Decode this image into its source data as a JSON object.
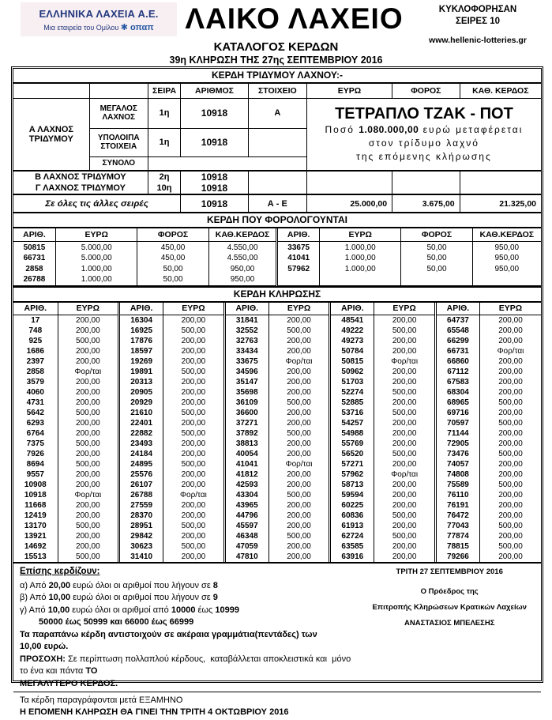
{
  "header": {
    "company": "ΕΛΛΗΝΙΚΑ ΛΑΧΕΙΑ Α.Ε.",
    "company_sub": "Μια εταιρεία του Ομίλου",
    "opap": "οπαπ",
    "title": "ΛΑΙΚΟ ΛΑΧΕΙΟ",
    "circulated_line1": "ΚΥΚΛΟΦΟΡΗΣΑΝ",
    "circulated_line2": "ΣΕΙΡΕΣ 10",
    "website": "www.hellenic-lotteries.gr",
    "catalog_title": "ΚΑΤΑΛΟΓΟΣ ΚΕΡΔΩΝ",
    "draw_subtitle": "39η ΚΛΗΡΩΣΗ ΤΗΣ 27ης ΣΕΠΤΕΜΒΡΙΟΥ 2016"
  },
  "colors": {
    "navy": "#23387e",
    "opap_blue": "#2456a4",
    "logo_bg": "#f7eff2"
  },
  "tridymos": {
    "banner": "ΚΕΡΔΗ ΤΡΙΔΥΜΟΥ ΛΑΧΝΟΥ:-",
    "headers": {
      "seira": "ΣΕΙΡΑ",
      "arithmos": "ΑΡΙΘΜΟΣ",
      "stoixeio": "ΣΤΟΙΧΕΙΟ",
      "euro": "ΕΥΡΩ",
      "foros": "ΦΟΡΟΣ",
      "kath": "ΚΑΘ. ΚΕΡΔΟΣ"
    },
    "row_a_label": "Α ΛΑΧΝΟΣ ΤΡΙΔΥΜΟΥ",
    "megalos_label": "ΜΕΓΑΛΟΣ ΛΑΧΝΟΣ",
    "megalos": {
      "seira": "1η",
      "arithmos": "10918",
      "stoixeio": "Α"
    },
    "ypoloipa_label": "ΥΠΟΛΟΙΠΑ ΣΤΟΙΧΕΙΑ",
    "ypoloipa": {
      "seira": "1η",
      "arithmos": "10918"
    },
    "synolo_label": "ΣΥΝΟΛΟ",
    "jackpot": {
      "title": "ΤΕΤΡΑΠΛΟ ΤΖΑΚ - ΠΟΤ",
      "line1_prefix": "Ποσό ",
      "amount": "1.080.000,00",
      "line1_suffix": " ευρώ μεταφέρεται",
      "line2": "στον τρίδυμο λαχνό",
      "line3": "της επόμενης κλήρωσης"
    },
    "row_b_label": "Β ΛΑΧΝΟΣ ΤΡΙΔΥΜΟΥ",
    "row_b": {
      "seira": "2η",
      "arithmos": "10918"
    },
    "row_c_label": "Γ ΛΑΧΝΟΣ ΤΡΙΔΥΜΟΥ",
    "row_c": {
      "seira": "10η",
      "arithmos": "10918"
    },
    "all_series": {
      "label": "Σε όλες τις άλλες σειρές",
      "arithmos": "10918",
      "stoixeio": "Α - Ε",
      "euro": "25.000,00",
      "foros": "3.675,00",
      "kath": "21.325,00"
    }
  },
  "taxed": {
    "banner": "ΚΕΡΔΗ ΠΟΥ ΦΟΡΟΛΟΓΟΥΝΤΑΙ",
    "headers": [
      "ΑΡΙΘ.",
      "ΕΥΡΩ",
      "ΦΟΡΟΣ",
      "ΚΑΘ.ΚΕΡΔΟΣ",
      "ΑΡΙΘ.",
      "ΕΥΡΩ",
      "ΦΟΡΟΣ",
      "ΚΑΘ.ΚΕΡΔΟΣ"
    ],
    "rows": [
      [
        "50815",
        "5.000,00",
        "450,00",
        "4.550,00",
        "33675",
        "1.000,00",
        "50,00",
        "950,00"
      ],
      [
        "66731",
        "5.000,00",
        "450,00",
        "4.550,00",
        "41041",
        "1.000,00",
        "50,00",
        "950,00"
      ],
      [
        "2858",
        "1.000,00",
        "50,00",
        "950,00",
        "57962",
        "1.000,00",
        "50,00",
        "950,00"
      ],
      [
        "26788",
        "1.000,00",
        "50,00",
        "950,00",
        "",
        "",
        "",
        ""
      ]
    ]
  },
  "draw": {
    "banner": "ΚΕΡΔΗ ΚΛΗΡΩΣΗΣ",
    "headers": [
      "ΑΡΙΘ.",
      "ΕΥΡΩ",
      "ΑΡΙΘ.",
      "ΕΥΡΩ",
      "ΑΡΙΘ.",
      "ΕΥΡΩ",
      "ΑΡΙΘ.",
      "ΕΥΡΩ",
      "ΑΡΙΘ.",
      "ΕΥΡΩ"
    ],
    "rows": [
      [
        "17",
        "200,00",
        "16304",
        "200,00",
        "31841",
        "200,00",
        "48541",
        "200,00",
        "64737",
        "200,00"
      ],
      [
        "748",
        "200,00",
        "16925",
        "500,00",
        "32552",
        "500,00",
        "49222",
        "500,00",
        "65548",
        "200,00"
      ],
      [
        "925",
        "500,00",
        "17876",
        "200,00",
        "32763",
        "200,00",
        "49273",
        "200,00",
        "66299",
        "200,00"
      ],
      [
        "1686",
        "200,00",
        "18597",
        "200,00",
        "33434",
        "200,00",
        "50784",
        "200,00",
        "66731",
        "Φορ/ται"
      ],
      [
        "2397",
        "200,00",
        "19269",
        "200,00",
        "33675",
        "Φορ/ται",
        "50815",
        "Φορ/ται",
        "66860",
        "200,00"
      ],
      [
        "2858",
        "Φορ/ται",
        "19891",
        "500,00",
        "34596",
        "200,00",
        "50962",
        "200,00",
        "67112",
        "200,00"
      ],
      [
        "3579",
        "200,00",
        "20313",
        "200,00",
        "35147",
        "200,00",
        "51703",
        "200,00",
        "67583",
        "200,00"
      ],
      [
        "4060",
        "200,00",
        "20905",
        "200,00",
        "35698",
        "200,00",
        "52274",
        "500,00",
        "68304",
        "200,00"
      ],
      [
        "4731",
        "200,00",
        "20929",
        "200,00",
        "36109",
        "500,00",
        "52885",
        "200,00",
        "68965",
        "500,00"
      ],
      [
        "5642",
        "500,00",
        "21610",
        "500,00",
        "36600",
        "200,00",
        "53716",
        "500,00",
        "69716",
        "200,00"
      ],
      [
        "6293",
        "200,00",
        "22401",
        "200,00",
        "37271",
        "200,00",
        "54257",
        "200,00",
        "70597",
        "500,00"
      ],
      [
        "6764",
        "200,00",
        "22882",
        "500,00",
        "37892",
        "500,00",
        "54988",
        "200,00",
        "71144",
        "200,00"
      ],
      [
        "7375",
        "500,00",
        "23493",
        "200,00",
        "38813",
        "200,00",
        "55769",
        "200,00",
        "72905",
        "200,00"
      ],
      [
        "7926",
        "200,00",
        "24184",
        "200,00",
        "40054",
        "200,00",
        "56520",
        "500,00",
        "73476",
        "500,00"
      ],
      [
        "8694",
        "500,00",
        "24895",
        "500,00",
        "41041",
        "Φορ/ται",
        "57271",
        "200,00",
        "74057",
        "200,00"
      ],
      [
        "9557",
        "200,00",
        "25576",
        "200,00",
        "41812",
        "200,00",
        "57962",
        "Φορ/ται",
        "74808",
        "200,00"
      ],
      [
        "10908",
        "200,00",
        "26107",
        "200,00",
        "42593",
        "200,00",
        "58713",
        "200,00",
        "75589",
        "500,00"
      ],
      [
        "10918",
        "Φορ/ται",
        "26788",
        "Φορ/ται",
        "43304",
        "500,00",
        "59594",
        "200,00",
        "76110",
        "200,00"
      ],
      [
        "11668",
        "200,00",
        "27559",
        "200,00",
        "43965",
        "200,00",
        "60225",
        "200,00",
        "76191",
        "200,00"
      ],
      [
        "12419",
        "200,00",
        "28370",
        "200,00",
        "44796",
        "200,00",
        "60836",
        "500,00",
        "76472",
        "200,00"
      ],
      [
        "13170",
        "500,00",
        "28951",
        "500,00",
        "45597",
        "200,00",
        "61913",
        "200,00",
        "77043",
        "500,00"
      ],
      [
        "13921",
        "200,00",
        "29842",
        "200,00",
        "46348",
        "500,00",
        "62724",
        "500,00",
        "77874",
        "200,00"
      ],
      [
        "14692",
        "200,00",
        "30623",
        "500,00",
        "47059",
        "200,00",
        "63585",
        "200,00",
        "78815",
        "500,00"
      ],
      [
        "15513",
        "500,00",
        "31410",
        "200,00",
        "47810",
        "200,00",
        "63916",
        "200,00",
        "79266",
        "200,00"
      ]
    ]
  },
  "footer": {
    "also_win_title": "Επίσης κερδίζουν:",
    "line_a": [
      {
        "t": "α) Από "
      },
      {
        "t": "20,00",
        "b": true
      },
      {
        "t": " ευρώ όλοι οι αριθμοί που λήγουν σε "
      },
      {
        "t": "8",
        "b": true
      }
    ],
    "line_b": [
      {
        "t": "β) Από "
      },
      {
        "t": "10,00",
        "b": true
      },
      {
        "t": " ευρώ όλοι οι αριθμοί που λήγουν σε "
      },
      {
        "t": "9",
        "b": true
      }
    ],
    "line_c": [
      {
        "t": "γ) Από "
      },
      {
        "t": "10,00",
        "b": true
      },
      {
        "t": " ευρώ όλοι οι αριθμοί από "
      },
      {
        "t": "10000",
        "b": true
      },
      {
        "t": " έως "
      },
      {
        "t": "10999",
        "b": true
      }
    ],
    "line_c2": [
      {
        "t": "50000",
        "b": true
      },
      {
        "t": " έως "
      },
      {
        "t": "50999",
        "b": true
      },
      {
        "t": " και "
      },
      {
        "t": "66000",
        "b": true
      },
      {
        "t": " έως "
      },
      {
        "t": "66999",
        "b": true
      }
    ],
    "note_1": [
      {
        "t": "Τα παραπάνω κέρδη αντιστοιχούν σε ακέραια γραμμάτια(πεντάδες) των",
        "b": true
      }
    ],
    "note_2": [
      {
        "t": "10,00 ευρώ.",
        "b": true
      }
    ],
    "attention_1": [
      {
        "t": "ΠΡΟΣΟΧΗ:",
        "b": true
      },
      {
        "t": " Σε περίπτωση πολλαπλού κέρδους,  καταβάλλεται αποκλειστικά και  μόνο το ένα και πάντα "
      },
      {
        "t": "ΤΟ",
        "b": true
      }
    ],
    "attention_2": [
      {
        "t": "ΜΕΓΑΛΥΤΕΡΟ ΚΕΡΔΟΣ.",
        "b": true
      }
    ],
    "expiry": "Τα κέρδη παραγράφονται μετά ΕΞΑΜΗΝΟ",
    "next_draw": "Η ΕΠΟΜΕΝΗ ΚΛΗΡΩΣΗ ΘΑ ΓΙΝΕΙ ΤΗΝ ΤΡΙΤΗ 4 ΟΚΤΩΒΡΙΟΥ 2016"
  },
  "signature": {
    "date": "ΤΡΙΤΗ 27 ΣΕΠΤΕΜΒΡΙΟΥ 2016",
    "role_line1": "Ο Πρόεδρος της",
    "role_line2": "Επιτροπής Κληρώσεων Κρατικών Λαχείων",
    "name": "ΑΝΑΣΤΑΣΙΟΣ ΜΠΕΛΕΣΗΣ"
  }
}
